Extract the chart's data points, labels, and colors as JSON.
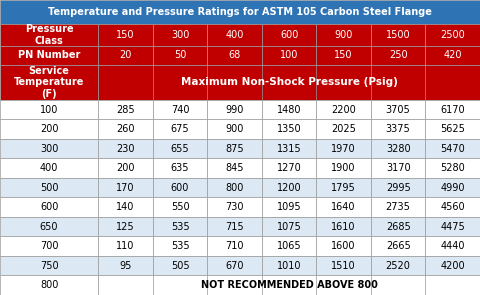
{
  "title": "Temperature and Pressure Ratings for ASTM 105 Carbon Steel Flange",
  "header1_label": "Pressure\nClass",
  "header1_values": [
    "150",
    "300",
    "400",
    "600",
    "900",
    "1500",
    "2500"
  ],
  "header2_label": "PN Number",
  "header2_values": [
    "20",
    "50",
    "68",
    "100",
    "150",
    "250",
    "420"
  ],
  "header3_label": "Service\nTemperature\n(F)",
  "header3_span": "Maximum Non-Shock Pressure (Psig)",
  "data_rows": [
    [
      "100",
      "285",
      "740",
      "990",
      "1480",
      "2200",
      "3705",
      "6170"
    ],
    [
      "200",
      "260",
      "675",
      "900",
      "1350",
      "2025",
      "3375",
      "5625"
    ],
    [
      "300",
      "230",
      "655",
      "875",
      "1315",
      "1970",
      "3280",
      "5470"
    ],
    [
      "400",
      "200",
      "635",
      "845",
      "1270",
      "1900",
      "3170",
      "5280"
    ],
    [
      "500",
      "170",
      "600",
      "800",
      "1200",
      "1795",
      "2995",
      "4990"
    ],
    [
      "600",
      "140",
      "550",
      "730",
      "1095",
      "1640",
      "2735",
      "4560"
    ],
    [
      "650",
      "125",
      "535",
      "715",
      "1075",
      "1610",
      "2685",
      "4475"
    ],
    [
      "700",
      "110",
      "535",
      "710",
      "1065",
      "1600",
      "2665",
      "4440"
    ],
    [
      "750",
      "95",
      "505",
      "670",
      "1010",
      "1510",
      "2520",
      "4200"
    ]
  ],
  "last_row_label": "800",
  "last_row_span": "NOT RECOMMENDED ABOVE 800",
  "title_bg": "#2e74b5",
  "title_fg": "#ffffff",
  "header_bg": "#c00000",
  "header_fg": "#ffffff",
  "data_row_bg_white": "#ffffff",
  "data_row_bg_blue": "#dce9f5",
  "data_row_fg": "#000000",
  "border_color": "#999999",
  "col_widths_raw": [
    1.35,
    0.75,
    0.75,
    0.75,
    0.75,
    0.75,
    0.75,
    0.75
  ],
  "title_fontsize": 7.0,
  "header_fontsize": 7.0,
  "data_fontsize": 7.0,
  "service_span_fontsize": 7.5
}
